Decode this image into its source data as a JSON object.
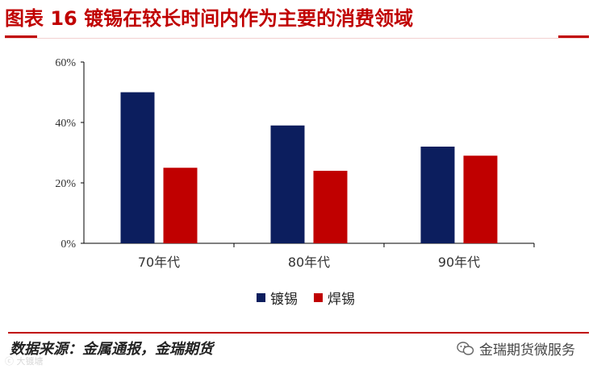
{
  "figure": {
    "title": "图表 16 镀锡在较长时间内作为主要的消费领域",
    "source": "数据来源：金属通报，金瑞期货",
    "watermark_left": "ⓒ 大镀塘",
    "watermark_right": "金瑞期货微服务"
  },
  "chart_data": {
    "type": "bar",
    "title": "",
    "xlabel": "",
    "ylabel": "",
    "categories": [
      "70年代",
      "80年代",
      "90年代"
    ],
    "series": [
      {
        "name": "镀锡",
        "values": [
          0.5,
          0.39,
          0.32
        ],
        "color": "#0c1e5e"
      },
      {
        "name": "焊锡",
        "values": [
          0.25,
          0.24,
          0.29
        ],
        "color": "#c00000"
      }
    ],
    "ylim": [
      0,
      0.6
    ],
    "yticks": [
      "0%",
      "20%",
      "40%",
      "60%"
    ],
    "grid": false,
    "legend_position": "bottom"
  },
  "icons": {
    "wechat": "wechat-icon"
  }
}
